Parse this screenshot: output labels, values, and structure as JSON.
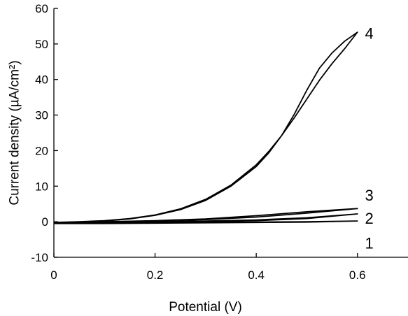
{
  "chart_data": {
    "type": "line",
    "title": "",
    "xlabel": "Potential (V)",
    "ylabel": "Current density (µA/cm²)",
    "xlim": [
      0,
      0.7
    ],
    "ylim": [
      -10,
      60
    ],
    "x_ticks": [
      0,
      0.2,
      0.4,
      0.6
    ],
    "x_tick_labels": [
      "0",
      "0.2",
      "0.4",
      "0.6"
    ],
    "y_ticks": [
      -10,
      0,
      10,
      20,
      30,
      40,
      50,
      60
    ],
    "y_tick_labels": [
      "-10",
      "0",
      "10",
      "20",
      "30",
      "40",
      "50",
      "60"
    ],
    "grid": false,
    "legend": "none",
    "series": [
      {
        "name": "1",
        "label_at": [
          0.615,
          -6
        ],
        "x": [
          0,
          0.1,
          0.2,
          0.3,
          0.4,
          0.5,
          0.6,
          0.5,
          0.4,
          0.3,
          0.2,
          0.1,
          0
        ],
        "y": [
          -0.5,
          -0.4,
          -0.3,
          -0.2,
          -0.1,
          0.0,
          0.2,
          -0.1,
          -0.2,
          -0.3,
          -0.4,
          -0.5,
          -0.5
        ]
      },
      {
        "name": "2",
        "label_at": [
          0.615,
          1
        ],
        "x": [
          0,
          0.1,
          0.2,
          0.3,
          0.4,
          0.5,
          0.6,
          0.5,
          0.4,
          0.3,
          0.2,
          0.1,
          0
        ],
        "y": [
          -0.4,
          -0.2,
          0.0,
          0.2,
          0.5,
          1.1,
          2.2,
          0.9,
          0.3,
          0.0,
          -0.2,
          -0.3,
          -0.4
        ]
      },
      {
        "name": "3",
        "label_at": [
          0.615,
          7.5
        ],
        "x": [
          0,
          0.1,
          0.2,
          0.3,
          0.4,
          0.5,
          0.6,
          0.5,
          0.4,
          0.3,
          0.2,
          0.1,
          0
        ],
        "y": [
          -0.3,
          0.0,
          0.2,
          0.6,
          1.3,
          2.4,
          3.7,
          2.8,
          1.7,
          0.8,
          0.3,
          0.0,
          -0.3
        ]
      },
      {
        "name": "4",
        "label_at": [
          0.615,
          53
        ],
        "x": [
          0,
          0.05,
          0.1,
          0.15,
          0.2,
          0.25,
          0.3,
          0.35,
          0.4,
          0.425,
          0.45,
          0.475,
          0.5,
          0.525,
          0.55,
          0.575,
          0.6,
          0.575,
          0.55,
          0.525,
          0.5,
          0.475,
          0.45,
          0.425,
          0.4,
          0.35,
          0.3,
          0.25,
          0.2,
          0.15,
          0.1,
          0.05,
          0
        ],
        "y": [
          -0.2,
          0.0,
          0.3,
          0.9,
          1.9,
          3.6,
          6.3,
          10.3,
          16.0,
          19.8,
          24.2,
          29.2,
          34.5,
          39.8,
          44.5,
          48.7,
          53.3,
          50.8,
          47.5,
          43.2,
          37.0,
          30.2,
          24.2,
          19.4,
          15.5,
          10.0,
          6.0,
          3.4,
          1.8,
          0.8,
          0.2,
          -0.1,
          -0.2
        ]
      }
    ]
  }
}
